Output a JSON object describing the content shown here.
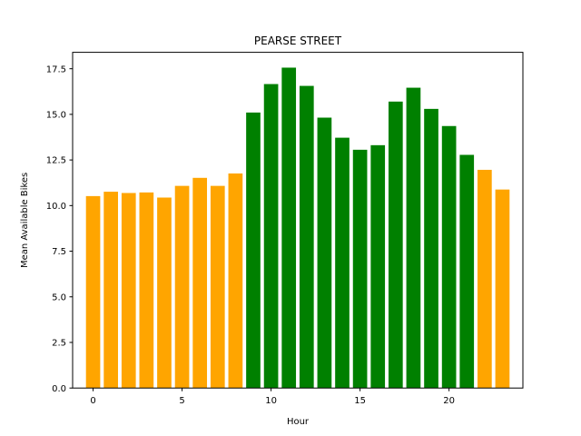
{
  "chart_data": {
    "type": "bar",
    "title": "PEARSE STREET",
    "xlabel": "Hour",
    "ylabel": "Mean Available Bikes",
    "x": [
      0,
      1,
      2,
      3,
      4,
      5,
      6,
      7,
      8,
      9,
      10,
      11,
      12,
      13,
      14,
      15,
      16,
      17,
      18,
      19,
      20,
      21,
      22,
      23
    ],
    "values": [
      10.52,
      10.76,
      10.69,
      10.72,
      10.44,
      11.08,
      11.52,
      11.08,
      11.76,
      15.1,
      16.66,
      17.56,
      16.56,
      14.82,
      13.72,
      13.06,
      13.31,
      15.7,
      16.46,
      15.3,
      14.36,
      12.78,
      11.96,
      10.88
    ],
    "colors": [
      "orange",
      "orange",
      "orange",
      "orange",
      "orange",
      "orange",
      "orange",
      "orange",
      "orange",
      "green",
      "green",
      "green",
      "green",
      "green",
      "green",
      "green",
      "green",
      "green",
      "green",
      "green",
      "green",
      "green",
      "orange",
      "orange"
    ],
    "color_map": {
      "orange": "#ffa500",
      "green": "#008000"
    },
    "xlim": [
      -1.15,
      24.15
    ],
    "ylim": [
      0,
      18.4
    ],
    "xticks": [
      0,
      5,
      10,
      15,
      20
    ],
    "yticks": [
      0.0,
      2.5,
      5.0,
      7.5,
      10.0,
      12.5,
      15.0,
      17.5
    ],
    "ytick_labels": [
      "0.0",
      "2.5",
      "5.0",
      "7.5",
      "10.0",
      "12.5",
      "15.0",
      "17.5"
    ],
    "grid": false,
    "legend": "none"
  }
}
